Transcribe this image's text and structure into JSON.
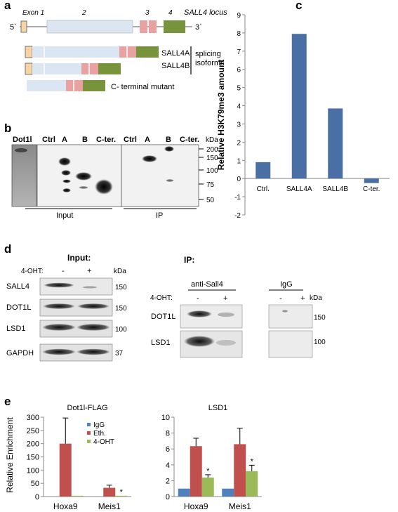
{
  "panel_letters": {
    "a": "a",
    "b": "b",
    "c": "c",
    "d": "d",
    "e": "e"
  },
  "panel_a": {
    "exon_labels": [
      "Exon 1",
      "2",
      "3",
      "4"
    ],
    "locus_label": "SALL4 locus",
    "five_prime": "5`",
    "three_prime": "3`",
    "isoform_a": "SALL4A",
    "isoform_b": "SALL4B",
    "splicing_label_1": "splicing",
    "splicing_label_2": "isoforms",
    "mutant_label": "C- terminal mutant",
    "colors": {
      "exon1": "#f6d4a6",
      "exon2": "#dce6f2",
      "exon3": "#e8a2a2",
      "exon4": "#77933c",
      "line": "#555555"
    }
  },
  "panel_b": {
    "lane_labels": [
      "Dot1l",
      "Ctrl",
      "A",
      "B",
      "C-ter.",
      "Ctrl",
      "A",
      "B",
      "C-ter."
    ],
    "kda_label": "kDa",
    "markers": [
      "200",
      "150",
      "100",
      "75",
      "50"
    ],
    "input_label": "Input",
    "ip_label": "IP"
  },
  "panel_c": {
    "chart_data": {
      "type": "bar",
      "categories": [
        "Ctrl.",
        "SALL4A",
        "SALL4B",
        "C-ter."
      ],
      "values": [
        0.9,
        7.95,
        3.85,
        -0.25
      ],
      "ylabel": "Relative H3K79me3 amount",
      "ylim": [
        -2,
        9
      ],
      "yticks": [
        -2,
        -1,
        0,
        1,
        2,
        3,
        4,
        5,
        6,
        7,
        8,
        9
      ],
      "bar_color": "#4a6fa5",
      "grid": false
    }
  },
  "panel_d": {
    "input_title": "Input:",
    "ohat_label": "4-OHT:",
    "minus": "-",
    "plus": "+",
    "kda_label": "kDa",
    "input_rows": [
      {
        "label": "SALL4",
        "marker": "150"
      },
      {
        "label": "DOT1L",
        "marker": "150"
      },
      {
        "label": "LSD1",
        "marker": "100"
      },
      {
        "label": "GAPDH",
        "marker": "37"
      }
    ],
    "ip_title": "IP:",
    "anti_label": "anti-Sall4",
    "igg_label": "IgG",
    "ip_rows": [
      {
        "label": "DOT1L",
        "marker": "150"
      },
      {
        "label": "LSD1",
        "marker": "100"
      }
    ]
  },
  "panel_e": {
    "ylabel": "Relative Enrichment",
    "legend": [
      "IgG",
      "Eth.",
      "4-OHT"
    ],
    "colors": {
      "IgG": "#4f81bd",
      "Eth.": "#c0504d",
      "4-OHT": "#9bbb59"
    },
    "chart_data": [
      {
        "type": "bar",
        "title": "Dot1l-FLAG",
        "categories": [
          "Hoxa9",
          "Meis1"
        ],
        "series": [
          {
            "name": "IgG",
            "values": [
              0,
              0
            ]
          },
          {
            "name": "Eth.",
            "values": [
              200,
              33
            ]
          },
          {
            "name": "4-OHT",
            "values": [
              3,
              3
            ]
          }
        ],
        "errors": {
          "Eth.": [
            97,
            10
          ],
          "4-OHT": [
            0,
            0
          ]
        },
        "ylim": [
          0,
          300
        ],
        "yticks": [
          0,
          50,
          100,
          150,
          200,
          250,
          300
        ],
        "annotation": "*"
      },
      {
        "type": "bar",
        "title": "LSD1",
        "categories": [
          "Hoxa9",
          "Meis1"
        ],
        "series": [
          {
            "name": "IgG",
            "values": [
              1,
              1
            ]
          },
          {
            "name": "Eth.",
            "values": [
              6.35,
              6.6
            ]
          },
          {
            "name": "4-OHT",
            "values": [
              2.4,
              3.2
            ]
          }
        ],
        "errors": {
          "Eth.": [
            1.0,
            2.0
          ],
          "4-OHT": [
            0.35,
            0.75
          ]
        },
        "ylim": [
          0,
          10
        ],
        "yticks": [
          0,
          2,
          4,
          6,
          8,
          10
        ],
        "annotation": "*"
      }
    ]
  }
}
